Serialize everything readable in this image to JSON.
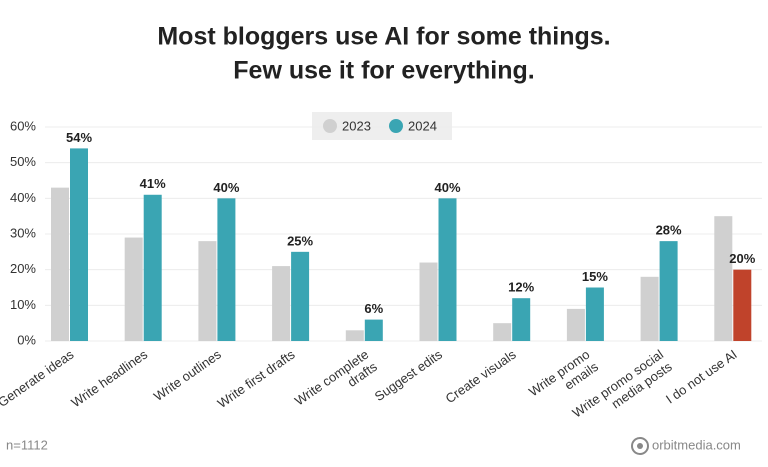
{
  "chart_data": {
    "type": "bar",
    "title": [
      "Most bloggers use AI for some things.",
      "Few use it for everything."
    ],
    "categories": [
      [
        "Generate ideas"
      ],
      [
        "Write headlines"
      ],
      [
        "Write outlines"
      ],
      [
        "Write first drafts"
      ],
      [
        "Write complete",
        "drafts"
      ],
      [
        "Suggest edits"
      ],
      [
        "Create visuals"
      ],
      [
        "Write promo",
        "emails"
      ],
      [
        "Write promo social",
        "media posts"
      ],
      [
        "I do not use AI"
      ]
    ],
    "series": [
      {
        "name": "2023",
        "color": "#d0d0d0",
        "values": [
          43,
          29,
          28,
          21,
          3,
          22,
          5,
          9,
          18,
          35
        ]
      },
      {
        "name": "2024",
        "color": "#3aa5b3",
        "point_colors": [
          null,
          null,
          null,
          null,
          null,
          null,
          null,
          null,
          null,
          "#c0432b"
        ],
        "values": [
          54,
          41,
          40,
          25,
          6,
          40,
          12,
          15,
          28,
          20
        ],
        "value_labels": [
          "54%",
          "41%",
          "40%",
          "25%",
          "6%",
          "40%",
          "12%",
          "15%",
          "28%",
          "20%"
        ]
      }
    ],
    "ylim": [
      0,
      60
    ],
    "yticks": [
      {
        "value": 0,
        "label": "0%"
      },
      {
        "value": 10,
        "label": "10%"
      },
      {
        "value": 20,
        "label": "20%"
      },
      {
        "value": 30,
        "label": "30%"
      },
      {
        "value": 40,
        "label": "40%"
      },
      {
        "value": 50,
        "label": "50%"
      },
      {
        "value": 60,
        "label": "60%"
      }
    ],
    "grid": true,
    "legend": "top",
    "note": "n=1112",
    "source": "orbitmedia.com"
  }
}
